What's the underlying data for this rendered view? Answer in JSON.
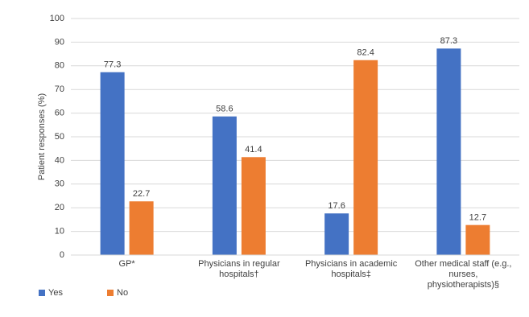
{
  "chart_data": {
    "type": "bar",
    "y_label": "Patient responses (%)",
    "categories": [
      "GP*",
      "Physicians in regular hospitals†",
      "Physicians in academic hospitals‡",
      "Other medical staff (e.g., nurses, physiotherapists)§"
    ],
    "series": [
      {
        "name": "Yes",
        "color": "#4472c4",
        "values": [
          77.3,
          58.6,
          17.6,
          87.3
        ]
      },
      {
        "name": "No",
        "color": "#ed7d31",
        "values": [
          22.7,
          41.4,
          82.4,
          12.7
        ]
      }
    ],
    "ylim": [
      0,
      100
    ],
    "yticks": [
      0,
      10,
      20,
      30,
      40,
      50,
      60,
      70,
      80,
      90,
      100
    ],
    "grid": true,
    "legend": "bottom-left"
  }
}
